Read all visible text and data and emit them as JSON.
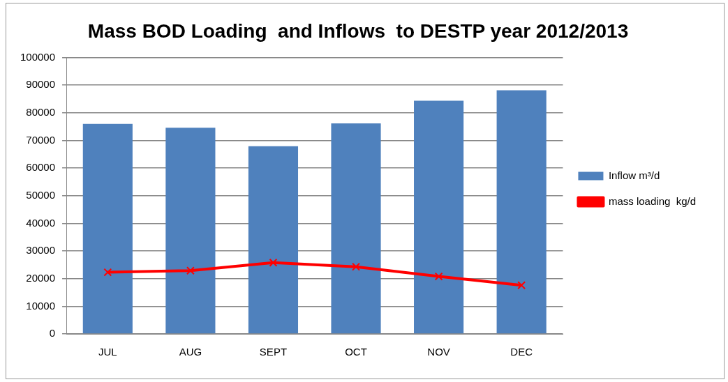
{
  "chart_data": {
    "type": "bar",
    "title": "Mass BOD Loading  and Inflows  to DESTP year 2012/2013",
    "categories": [
      "JUL",
      "AUG",
      "SEPT",
      "OCT",
      "NOV",
      "DEC"
    ],
    "series": [
      {
        "name": "Inflow m³/d",
        "color": "#4f81bd",
        "values": [
          76000,
          74600,
          67900,
          76200,
          84400,
          88200
        ]
      },
      {
        "name": "mass loading  kg/d",
        "type": "line",
        "color": "#ff0000",
        "marker": "cross",
        "values": [
          22300,
          22900,
          25800,
          24300,
          20800,
          17600
        ]
      }
    ],
    "ylim": [
      0,
      100000
    ],
    "yticks": [
      0,
      10000,
      20000,
      30000,
      40000,
      50000,
      60000,
      70000,
      80000,
      90000,
      100000
    ],
    "grid": "y",
    "legend": "right"
  }
}
